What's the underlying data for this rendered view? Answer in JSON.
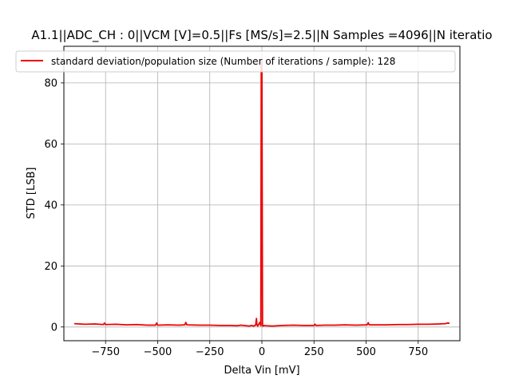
{
  "chart_data": {
    "type": "line",
    "title": "A1.1||ADC_CH : 0||VCM [V]=0.5||Fs [MS/s]=2.5||N Samples =4096||N iteratio",
    "xlabel": "Delta Vin [mV]",
    "ylabel": "STD [LSB]",
    "xlim": [
      -950,
      950
    ],
    "ylim": [
      -4.5,
      92
    ],
    "xticks": [
      -750,
      -500,
      -250,
      0,
      250,
      500,
      750
    ],
    "yticks": [
      0,
      20,
      40,
      60,
      80
    ],
    "xtick_labels": [
      "−750",
      "−500",
      "−250",
      "0",
      "250",
      "500",
      "750"
    ],
    "ytick_labels": [
      "0",
      "20",
      "40",
      "60",
      "80"
    ],
    "grid": true,
    "legend_position": "top",
    "series": [
      {
        "name": "standard deviation/population size (Number of iterations / sample): 128",
        "color": "#ee0000",
        "x": [
          -900,
          -850,
          -800,
          -760,
          -755,
          -750,
          -700,
          -650,
          -600,
          -550,
          -510,
          -505,
          -500,
          -450,
          -400,
          -370,
          -365,
          -360,
          -300,
          -250,
          -200,
          -150,
          -120,
          -100,
          -60,
          -50,
          -40,
          -30,
          -26,
          -24,
          -20,
          -10,
          -5,
          -3,
          0,
          3,
          5,
          10,
          20,
          50,
          100,
          150,
          200,
          250,
          255,
          260,
          300,
          350,
          400,
          450,
          505,
          510,
          515,
          550,
          600,
          650,
          700,
          750,
          800,
          850,
          880,
          890,
          900
        ],
        "y": [
          1.1,
          0.9,
          1.0,
          0.8,
          1.3,
          0.8,
          0.9,
          0.7,
          0.8,
          0.6,
          0.6,
          1.3,
          0.6,
          0.7,
          0.6,
          0.7,
          1.5,
          0.7,
          0.6,
          0.6,
          0.5,
          0.5,
          0.4,
          0.6,
          0.3,
          0.5,
          0.3,
          0.6,
          2.8,
          0.8,
          0.3,
          1.5,
          0.4,
          87.0,
          87.0,
          0.6,
          0.3,
          0.5,
          0.4,
          0.3,
          0.5,
          0.6,
          0.5,
          0.5,
          0.9,
          0.5,
          0.6,
          0.6,
          0.7,
          0.6,
          0.7,
          1.4,
          0.7,
          0.7,
          0.7,
          0.8,
          0.8,
          0.9,
          0.9,
          1.0,
          1.1,
          1.3,
          1.2
        ]
      }
    ]
  }
}
